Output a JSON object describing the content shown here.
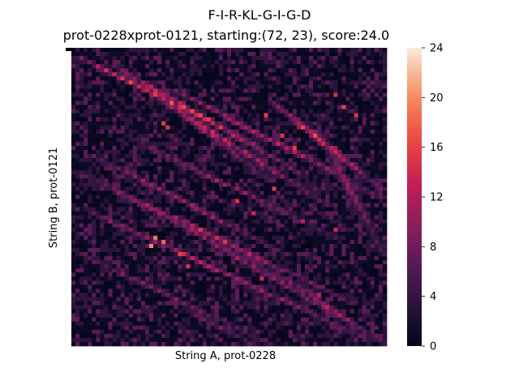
{
  "chart_data": {
    "type": "heatmap",
    "title": "F-I-R-KL-G-I-G-D",
    "subtitle": "prot-0228xprot-0121, starting:(72, 23), score:24.0",
    "xlabel": "String A, prot-0228",
    "ylabel": "String B, prot-0121",
    "n_cols": 77,
    "n_rows": 73,
    "colorbar": {
      "vmin": 0,
      "vmax": 24,
      "ticks": [
        "0",
        "4",
        "8",
        "12",
        "16",
        "20",
        "24"
      ],
      "colormap": "rocket"
    },
    "start_cell": {
      "col": 0,
      "row": 0,
      "value": 24.0
    },
    "diagonal_bands": [
      {
        "row0": 2,
        "row1": 23,
        "col0": 2,
        "col1": 44,
        "peak": 16
      },
      {
        "row0": 4,
        "row1": 30,
        "col0": 10,
        "col1": 55,
        "peak": 14
      },
      {
        "row0": 6,
        "row1": 32,
        "col0": 14,
        "col1": 48,
        "peak": 12
      },
      {
        "row0": 10,
        "row1": 38,
        "col0": 18,
        "col1": 62,
        "peak": 12
      },
      {
        "row0": 10,
        "row1": 36,
        "col0": 25,
        "col1": 75,
        "peak": 13
      },
      {
        "row0": 14,
        "row1": 34,
        "col0": 50,
        "col1": 75,
        "peak": 15
      },
      {
        "row0": 22,
        "row1": 46,
        "col0": 15,
        "col1": 64,
        "peak": 10
      },
      {
        "row0": 26,
        "row1": 50,
        "col0": 5,
        "col1": 52,
        "peak": 11
      },
      {
        "row0": 30,
        "row1": 58,
        "col0": 2,
        "col1": 55,
        "peak": 10
      },
      {
        "row0": 34,
        "row1": 62,
        "col0": 10,
        "col1": 68,
        "peak": 13
      },
      {
        "row0": 40,
        "row1": 70,
        "col0": 5,
        "col1": 70,
        "peak": 12
      },
      {
        "row0": 42,
        "row1": 72,
        "col0": 25,
        "col1": 76,
        "peak": 10
      },
      {
        "row0": 50,
        "row1": 72,
        "col0": 2,
        "col1": 48,
        "peak": 9
      },
      {
        "row0": 20,
        "row1": 50,
        "col0": 60,
        "col1": 76,
        "peak": 9
      },
      {
        "row0": 55,
        "row1": 72,
        "col0": 50,
        "col1": 76,
        "peak": 11
      },
      {
        "row0": 64,
        "row1": 72,
        "col0": 28,
        "col1": 44,
        "peak": 8
      }
    ],
    "hotspots": [
      {
        "row": 48,
        "col": 19,
        "value": 20
      },
      {
        "row": 46,
        "col": 20,
        "value": 19
      },
      {
        "row": 47,
        "col": 22,
        "value": 18
      },
      {
        "row": 18,
        "col": 22,
        "value": 16
      },
      {
        "row": 19,
        "col": 23,
        "value": 15
      },
      {
        "row": 16,
        "col": 47,
        "value": 16
      },
      {
        "row": 21,
        "col": 51,
        "value": 15
      },
      {
        "row": 24,
        "col": 54,
        "value": 16
      },
      {
        "row": 34,
        "col": 49,
        "value": 16
      },
      {
        "row": 37,
        "col": 40,
        "value": 15
      },
      {
        "row": 40,
        "col": 44,
        "value": 14
      },
      {
        "row": 42,
        "col": 56,
        "value": 13
      },
      {
        "row": 44,
        "col": 64,
        "value": 14
      },
      {
        "row": 11,
        "col": 64,
        "value": 15
      },
      {
        "row": 14,
        "col": 66,
        "value": 16
      },
      {
        "row": 16,
        "col": 69,
        "value": 15
      },
      {
        "row": 50,
        "col": 26,
        "value": 16
      },
      {
        "row": 53,
        "col": 28,
        "value": 15
      },
      {
        "row": 56,
        "col": 46,
        "value": 14
      },
      {
        "row": 60,
        "col": 60,
        "value": 13
      }
    ]
  }
}
